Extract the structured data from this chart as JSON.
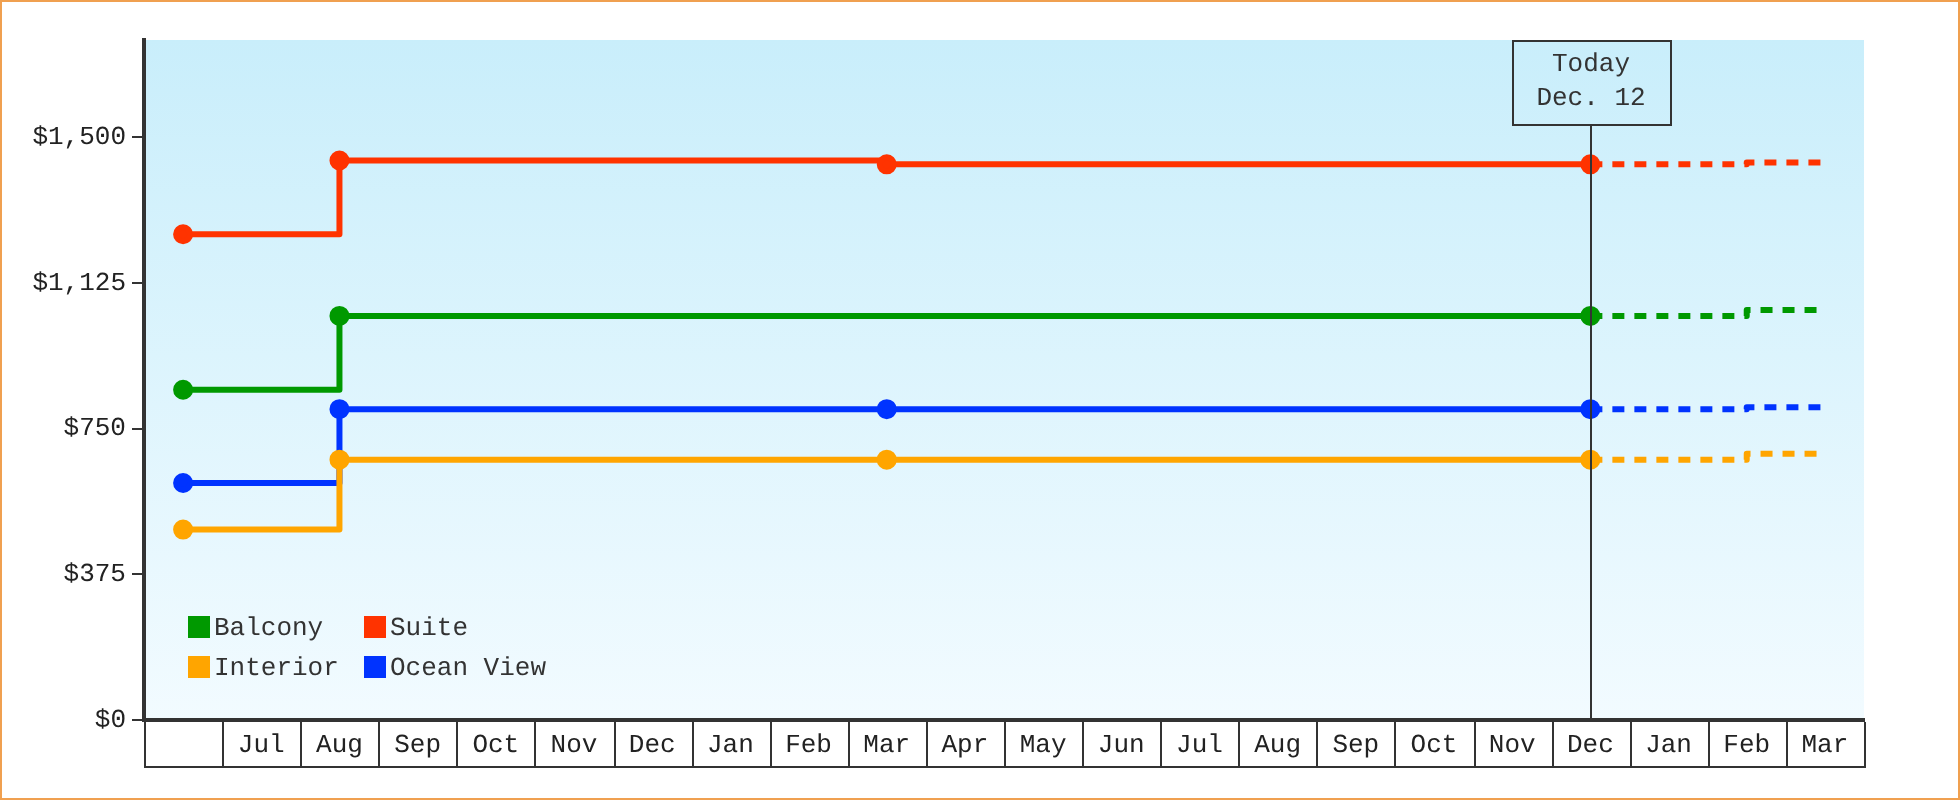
{
  "chart_data": {
    "type": "step",
    "categories": [
      null,
      "Jul",
      "Aug",
      "Sep",
      "Oct",
      "Nov",
      "Dec",
      "Jan",
      "Feb",
      "Mar",
      "Apr",
      "May",
      "Jun",
      "Jul",
      "Aug",
      "Sep",
      "Oct",
      "Nov",
      "Dec",
      "Jan",
      "Feb",
      "Mar"
    ],
    "ylim": [
      0,
      1750
    ],
    "yticks": [
      {
        "value": 0,
        "label": "$0"
      },
      {
        "value": 375,
        "label": "$375"
      },
      {
        "value": 750,
        "label": "$750"
      },
      {
        "value": 1125,
        "label": "$1,125"
      },
      {
        "value": 1500,
        "label": "$1,500"
      }
    ],
    "grid": "x",
    "legend": "bottom left",
    "annotations": [
      "Today\nDec. 12"
    ],
    "series": [
      {
        "name": "Balcony",
        "color": "#009900",
        "marker": "circle",
        "line_style": "solid",
        "values": [
          850,
          null,
          1040,
          null,
          null,
          null,
          null,
          null,
          null,
          null,
          null,
          null,
          null,
          null,
          null,
          null,
          null,
          null,
          1040,
          null,
          null,
          null
        ]
      },
      {
        "name": "Suite",
        "color": "#ff3300",
        "marker": "circle",
        "line_style": "solid",
        "values": [
          1250,
          null,
          1440,
          null,
          null,
          null,
          null,
          null,
          null,
          1430,
          null,
          null,
          null,
          null,
          null,
          null,
          null,
          null,
          1430,
          null,
          null,
          null
        ]
      },
      {
        "name": "Interior",
        "color": "#ffa500",
        "marker": "circle",
        "line_style": "solid",
        "values": [
          490,
          null,
          670,
          null,
          null,
          null,
          null,
          null,
          null,
          670,
          null,
          null,
          null,
          null,
          null,
          null,
          null,
          null,
          670,
          null,
          null,
          null
        ]
      },
      {
        "name": "Ocean View",
        "color": "#0033ff",
        "marker": "circle",
        "line_style": "solid",
        "values": [
          610,
          null,
          800,
          null,
          null,
          null,
          null,
          null,
          null,
          800,
          null,
          null,
          null,
          null,
          null,
          null,
          null,
          null,
          800,
          null,
          null,
          null
        ]
      },
      {
        "color": "#009900",
        "marker": "none",
        "line_style": "dashed",
        "values": [
          null,
          null,
          null,
          null,
          null,
          null,
          null,
          null,
          null,
          null,
          null,
          null,
          null,
          null,
          null,
          null,
          null,
          null,
          1040,
          null,
          1055,
          1055
        ]
      },
      {
        "color": "#ff3300",
        "marker": "none",
        "line_style": "dashed",
        "values": [
          null,
          null,
          null,
          null,
          null,
          null,
          null,
          null,
          null,
          null,
          null,
          null,
          null,
          null,
          null,
          null,
          null,
          null,
          1430,
          null,
          1435,
          1440
        ]
      },
      {
        "color": "#ffa500",
        "marker": "none",
        "line_style": "dashed",
        "values": [
          null,
          null,
          null,
          null,
          null,
          null,
          null,
          null,
          null,
          null,
          null,
          null,
          null,
          null,
          null,
          null,
          null,
          null,
          670,
          null,
          685,
          685
        ]
      },
      {
        "color": "#0033ff",
        "marker": "none",
        "line_style": "dashed",
        "values": [
          null,
          null,
          null,
          null,
          null,
          null,
          null,
          null,
          null,
          null,
          null,
          null,
          null,
          null,
          null,
          null,
          null,
          null,
          800,
          null,
          805,
          810
        ]
      }
    ]
  }
}
